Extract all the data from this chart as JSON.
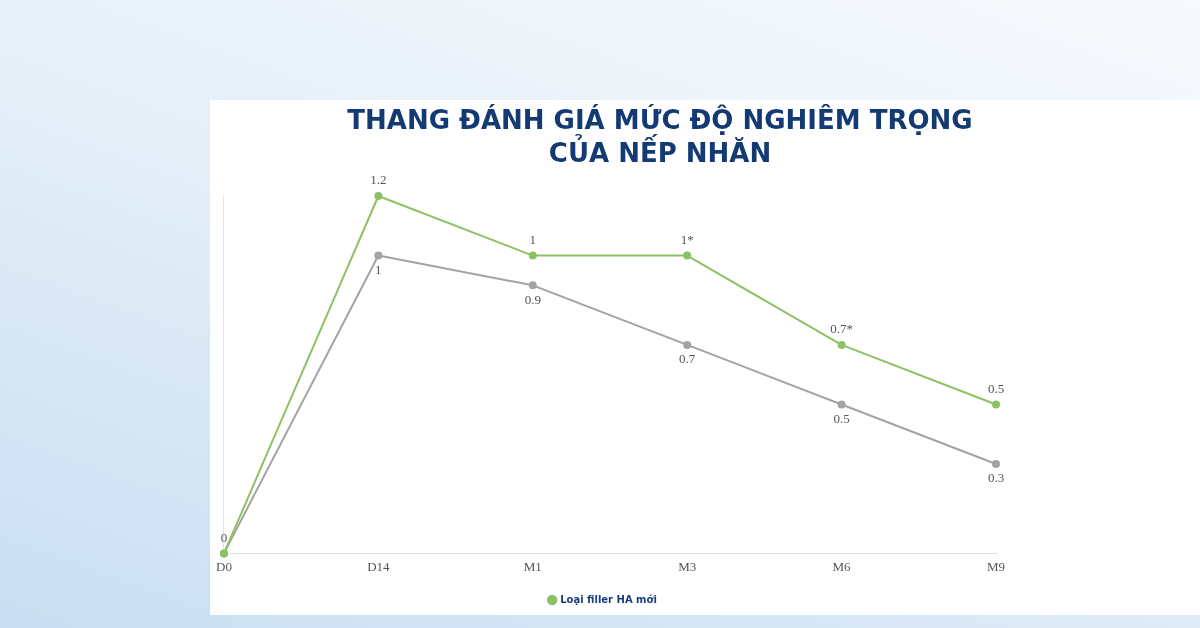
{
  "chart_data": {
    "type": "line",
    "title": "THANG ĐÁNH GIÁ MỨC ĐỘ NGHIÊM TRỌNG CỦA NẾP NHĂN",
    "categories": [
      "D0",
      "D14",
      "M1",
      "M3",
      "M6",
      "M9"
    ],
    "series": [
      {
        "name": "Loại filler HA mới",
        "color": "#8cc265",
        "values": [
          0,
          1.2,
          1,
          1,
          0.7,
          0.5
        ],
        "value_labels": [
          "0",
          "1.2",
          "1",
          "1*",
          "0.7*",
          "0.5"
        ]
      },
      {
        "color": "#a3a3a3",
        "values": [
          0,
          1,
          0.9,
          0.7,
          0.5,
          0.3
        ],
        "value_labels": [
          null,
          "1",
          "0.9",
          "0.7",
          "0.5",
          "0.3"
        ]
      }
    ],
    "legend": "bottom",
    "marker": "circle",
    "line_style": "solid",
    "tick_labels": "x"
  }
}
